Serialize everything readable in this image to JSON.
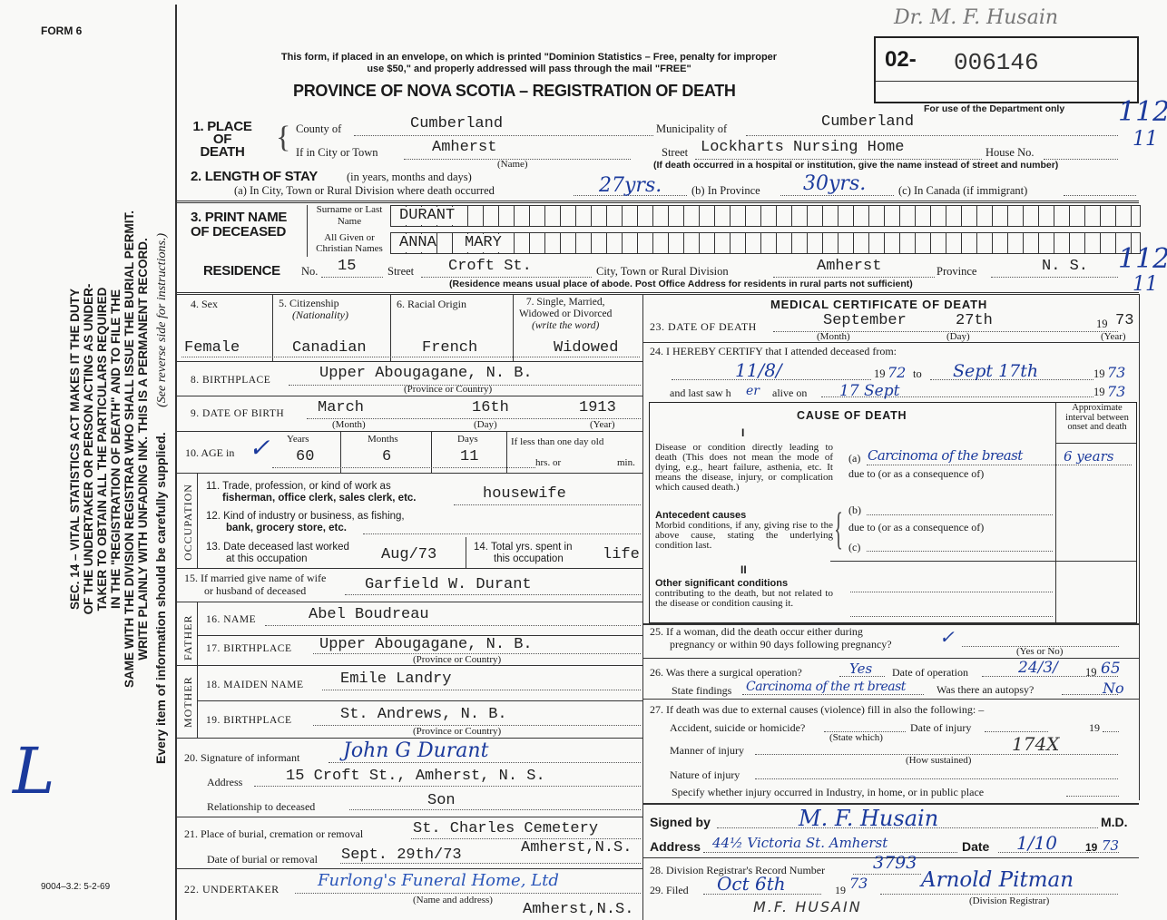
{
  "form_number": "FORM 6",
  "header": {
    "notice_line1": "This form, if placed in an envelope, on which is printed \"Dominion Statistics – Free, penalty for improper",
    "notice_line2": "use $50,\" and properly addressed will pass through the mail \"FREE\"",
    "title": "PROVINCE OF NOVA SCOTIA – REGISTRATION OF DEATH",
    "reg_prefix": "02-",
    "reg_number": "006146",
    "dept_only": "For use of the Department only",
    "top_handwritten": "Dr. M. F. Husain",
    "margin_code1": "112",
    "margin_code2": "11"
  },
  "sidebar": {
    "line1": "SEC. 14 – VITAL STATISTICS ACT MAKES IT THE DUTY",
    "line2": "OF THE UNDERTAKER OR PERSON ACTING AS UNDER-",
    "line3": "TAKER TO OBTAIN ALL THE PARTICULARS REQUIRED",
    "line4": "IN THE \"REGISTRATION OF DEATH\" AND TO FILE THE",
    "line5": "SAME WITH THE DIVISION REGISTRAR WHO SHALL ISSUE THE BURIAL PERMIT.",
    "line6": "WRITE PLAINLY WITH UNFADING INK. THIS IS A PERMANENT RECORD.",
    "line7": "Every item of information should be carefully supplied.",
    "line8": "(See reverse side for instructions.)",
    "handwritten_initial": "L",
    "form_code": "9004–3.2: 5-2-69"
  },
  "place_of_death": {
    "label": "1. PLACE OF DEATH",
    "county_label": "County of",
    "county": "Cumberland",
    "municipality_label": "Municipality of",
    "municipality": "Cumberland",
    "city_label": "If in City or Town",
    "city": "Amherst",
    "name_note": "(Name)",
    "street_label": "Street",
    "street": "Lockharts Nursing Home",
    "house_label": "House No.",
    "institution_note": "(If death occurred in a hospital or institution, give the name instead of street and number)"
  },
  "length_of_stay": {
    "label": "2. LENGTH OF STAY",
    "sub": "(in years, months and days)",
    "a_label": "(a) In City, Town or Rural Division where death occurred",
    "a_value": "27yrs.",
    "b_label": "(b) In Province",
    "b_value": "30yrs.",
    "c_label": "(c) In Canada (if immigrant)"
  },
  "name": {
    "label": "3. PRINT NAME OF DECEASED",
    "surname_label": "Surname or Last Name",
    "surname": "DURANT",
    "given_label": "All Given or Christian Names",
    "given1": "ANNA",
    "given2": "MARY"
  },
  "residence": {
    "label": "RESIDENCE",
    "no_label": "No.",
    "no": "15",
    "street_label": "Street",
    "street": "Croft St.",
    "city_label": "City, Town or Rural Division",
    "city": "Amherst",
    "province_label": "Province",
    "province": "N. S.",
    "note": "(Residence means usual place of abode. Post Office Address for residents in rural parts not sufficient)"
  },
  "personal": {
    "sex_label": "4. Sex",
    "sex": "Female",
    "citizenship_label": "5. Citizenship",
    "citizenship_sub": "(Nationality)",
    "citizenship": "Canadian",
    "racial_label": "6. Racial Origin",
    "racial": "French",
    "marital_label1": "7. Single, Married,",
    "marital_label2": "Widowed or Divorced",
    "marital_sub": "(write the word)",
    "marital": "Widowed",
    "birthplace_label": "8. BIRTHPLACE",
    "birthplace": "Upper Abougagane, N. B.",
    "province_note": "(Province or Country)",
    "dob_label": "9. DATE OF BIRTH",
    "dob_month": "March",
    "dob_day": "16th",
    "dob_year": "1913",
    "month_note": "(Month)",
    "day_note": "(Day)",
    "year_note": "(Year)",
    "age_label": "10. AGE in",
    "years_label": "Years",
    "years": "60",
    "months_label": "Months",
    "months": "6",
    "days_label": "Days",
    "days": "11",
    "less_day": "If less than one day old",
    "hrs": "hrs. or",
    "min": "min."
  },
  "occupation": {
    "side_label": "OCCUPATION",
    "q11a": "11. Trade, profession, or kind of work as",
    "q11b": "fisherman, office clerk, sales clerk, etc.",
    "trade": "housewife",
    "q12a": "12. Kind of industry or business, as fishing,",
    "q12b": "bank, grocery store, etc.",
    "q13a": "13. Date deceased last worked",
    "q13b": "at this occupation",
    "last_worked": "Aug/73",
    "q14a": "14. Total yrs. spent in",
    "q14b": "this occupation",
    "total_years": "life"
  },
  "spouse": {
    "q15a": "15. If married give name of wife",
    "q15b": "or husband of deceased",
    "name": "Garfield W. Durant"
  },
  "father": {
    "side_label": "FATHER",
    "name_label": "16. NAME",
    "name": "Abel Boudreau",
    "birthplace_label": "17. BIRTHPLACE",
    "birthplace": "Upper Abougagane, N. B.",
    "note": "(Province or Country)"
  },
  "mother": {
    "side_label": "MOTHER",
    "maiden_label": "18. MAIDEN NAME",
    "maiden": "Emile Landry",
    "birthplace_label": "19. BIRTHPLACE",
    "birthplace": "St. Andrews, N. B.",
    "note": "(Province or Country)"
  },
  "informant": {
    "sig_label": "20. Signature of informant",
    "signature": "John G Durant",
    "address_label": "Address",
    "address": "15 Croft St., Amherst, N. S.",
    "rel_label": "Relationship to deceased",
    "relationship": "Son"
  },
  "burial": {
    "place_label": "21. Place of burial, cremation or removal",
    "place": "St. Charles Cemetery",
    "place2": "Amherst,N.S.",
    "date_label": "Date of burial or removal",
    "date": "Sept. 29th/73"
  },
  "undertaker": {
    "label": "22. UNDERTAKER",
    "value": "Furlong's Funeral Home, Ltd",
    "note": "(Name and address)",
    "address": "Amherst,N.S."
  },
  "medical": {
    "title": "MEDICAL CERTIFICATE OF DEATH",
    "dod_label": "23. DATE OF DEATH",
    "dod_month": "September",
    "dod_day": "27th",
    "dod_century": "19",
    "dod_year": "73",
    "month_note": "(Month)",
    "day_note": "(Day)",
    "year_note": "(Year)",
    "certify": "24. I HEREBY CERTIFY that I attended deceased from:",
    "from": "11/8/",
    "from_year_prefix": "19",
    "from_year": "72",
    "to_label": "to",
    "to": "Sept 17th",
    "to_year_prefix": "19",
    "to_year": "73",
    "last_saw": "and last saw h",
    "last_saw_hw": "er",
    "alive_on": "alive on",
    "last_seen": "17 Sept",
    "last_year_prefix": "19",
    "last_year": "73"
  },
  "cause": {
    "title": "CAUSE OF DEATH",
    "interval_header": "Approximate interval between onset and death",
    "part1": "I",
    "direct_label": "Disease or condition directly leading to death (This does not mean the mode of dying, e.g., heart failure, asthenia, etc. It means the disease, injury, or complication which caused death.)",
    "a_label": "(a)",
    "a_value": "Carcinoma of the breast",
    "a_interval": "6 years",
    "due_to": "due to (or as a consequence of)",
    "antecedent_title": "Antecedent causes",
    "antecedent_text": "Morbid conditions, if any, giving rise to the above cause, stating the underlying condition last.",
    "b_label": "(b)",
    "c_label": "(c)",
    "part2": "II",
    "other_title": "Other significant conditions",
    "other_text": "contributing to the death, but not related to the disease or condition causing it."
  },
  "q25": {
    "line1": "25. If a woman, did the death occur either during",
    "line2": "pregnancy or within 90 days following pregnancy?",
    "note": "(Yes or No)"
  },
  "q26": {
    "line1": "26. Was there a surgical operation?",
    "operation": "Yes",
    "date_label": "Date of operation",
    "date": "24/3/",
    "year_prefix": "19",
    "year": "65",
    "findings_label": "State findings",
    "findings": "Carcinoma of the rt breast",
    "autopsy_label": "Was there an autopsy?",
    "autopsy": "No"
  },
  "q27": {
    "line1": "27. If death was due to external causes (violence) fill in also the following: –",
    "accident_label": "Accident, suicide or homicide?",
    "state_which": "(State which)",
    "injury_date_label": "Date of injury",
    "injury_year_prefix": "19",
    "manner_label": "Manner of injury",
    "manner_hw": "174X",
    "how": "(How sustained)",
    "nature_label": "Nature of injury",
    "specify": "Specify whether injury occurred in Industry, in home, or in public place"
  },
  "signature": {
    "signed_label": "Signed by",
    "signature": "M. F. Husain",
    "md": "M.D.",
    "address_label": "Address",
    "address": "44½ Victoria St. Amherst",
    "date_label": "Date",
    "date": "1/10",
    "year_prefix": "19",
    "year": "73"
  },
  "registrar": {
    "q28": "28. Division Registrar's Record Number",
    "record_number": "3793",
    "q29": "29. Filed",
    "filed": "Oct 6th",
    "filed_year_prefix": "19",
    "filed_year": "73",
    "registrar_signature": "Arnold Pitman",
    "registrar_note": "(Division Registrar)",
    "printed_name": "M.F. HUSAIN"
  },
  "colors": {
    "paper": "#f9f9f7",
    "ink_print": "#1a1a1a",
    "ink_handwritten": "#1b3a9c"
  }
}
